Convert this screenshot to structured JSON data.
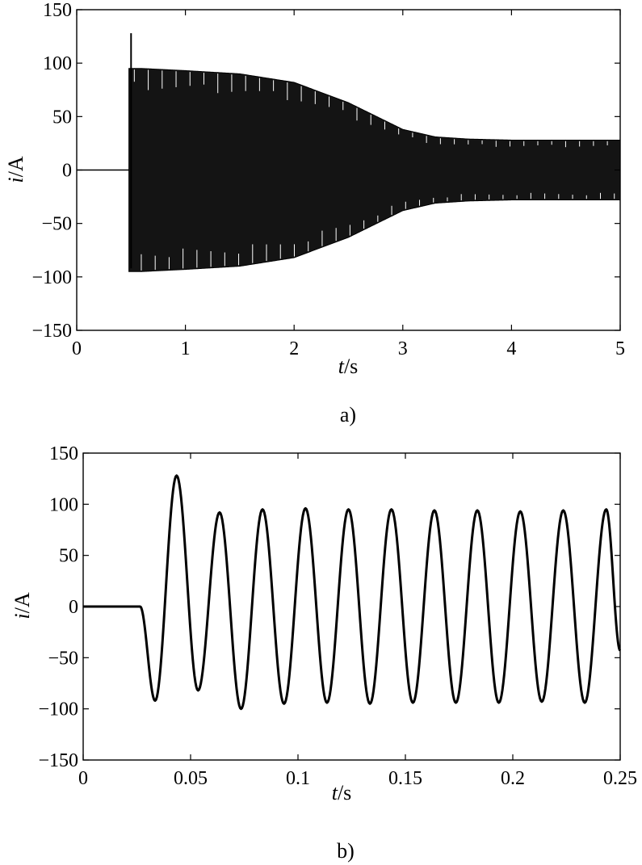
{
  "figure": {
    "panels": [
      {
        "caption": "a)",
        "xlabel_var": "t",
        "xlabel_unit": "/s",
        "ylabel_var": "i",
        "ylabel_unit": "/A"
      },
      {
        "caption": "b)",
        "xlabel_var": "t",
        "xlabel_unit": "/s",
        "ylabel_var": "i",
        "ylabel_unit": "/A"
      }
    ]
  },
  "chart_data": [
    {
      "type": "line",
      "caption": "a)",
      "xlabel": "t/s",
      "ylabel": "i/A",
      "xlim": [
        0,
        5
      ],
      "ylim": [
        -150,
        150
      ],
      "xticks": [
        0,
        1,
        2,
        3,
        4,
        5
      ],
      "xtick_labels": [
        "0",
        "1",
        "2",
        "3",
        "4",
        "5"
      ],
      "yticks": [
        -150,
        -100,
        -50,
        0,
        50,
        100,
        150
      ],
      "ytick_labels": [
        "−150",
        "−100",
        "−50",
        "0",
        "50",
        "100",
        "150"
      ],
      "grid": false,
      "signal": {
        "frequency_hz": 50,
        "onset_s": 0.48,
        "first_peak": 128,
        "envelope": {
          "t": [
            0.48,
            0.6,
            1.0,
            1.5,
            2.0,
            2.5,
            3.0,
            3.3,
            3.6,
            4.0,
            4.5,
            5.0
          ],
          "amplitude": [
            95,
            95,
            93,
            90,
            82,
            63,
            38,
            31,
            29,
            28,
            28,
            28
          ]
        }
      }
    },
    {
      "type": "line",
      "caption": "b)",
      "xlabel": "t/s",
      "ylabel": "i/A",
      "xlim": [
        0,
        0.25
      ],
      "ylim": [
        -150,
        150
      ],
      "xticks": [
        0,
        0.05,
        0.1,
        0.15,
        0.2,
        0.25
      ],
      "xtick_labels": [
        "0",
        "0.05",
        "0.1",
        "0.15",
        "0.2",
        "0.25"
      ],
      "yticks": [
        -150,
        -100,
        -50,
        0,
        50,
        100,
        150
      ],
      "ytick_labels": [
        "−150",
        "−100",
        "−50",
        "0",
        "50",
        "100",
        "150"
      ],
      "grid": false,
      "peaks": {
        "t": [
          0.0335,
          0.0435,
          0.0535,
          0.0635,
          0.0735,
          0.0835,
          0.0935,
          0.1035,
          0.1135,
          0.1235,
          0.1335,
          0.1435,
          0.1535,
          0.1635,
          0.1735,
          0.1835,
          0.1935,
          0.2035,
          0.2135,
          0.2235,
          0.2335,
          0.2435
        ],
        "i": [
          -92,
          128,
          -82,
          92,
          -100,
          95,
          -95,
          96,
          -94,
          95,
          -95,
          95,
          -94,
          94,
          -94,
          94,
          -94,
          93,
          -93,
          94,
          -94,
          95
        ]
      },
      "onset_s": 0.0265,
      "end": {
        "t": 0.25,
        "i": -43
      }
    }
  ]
}
